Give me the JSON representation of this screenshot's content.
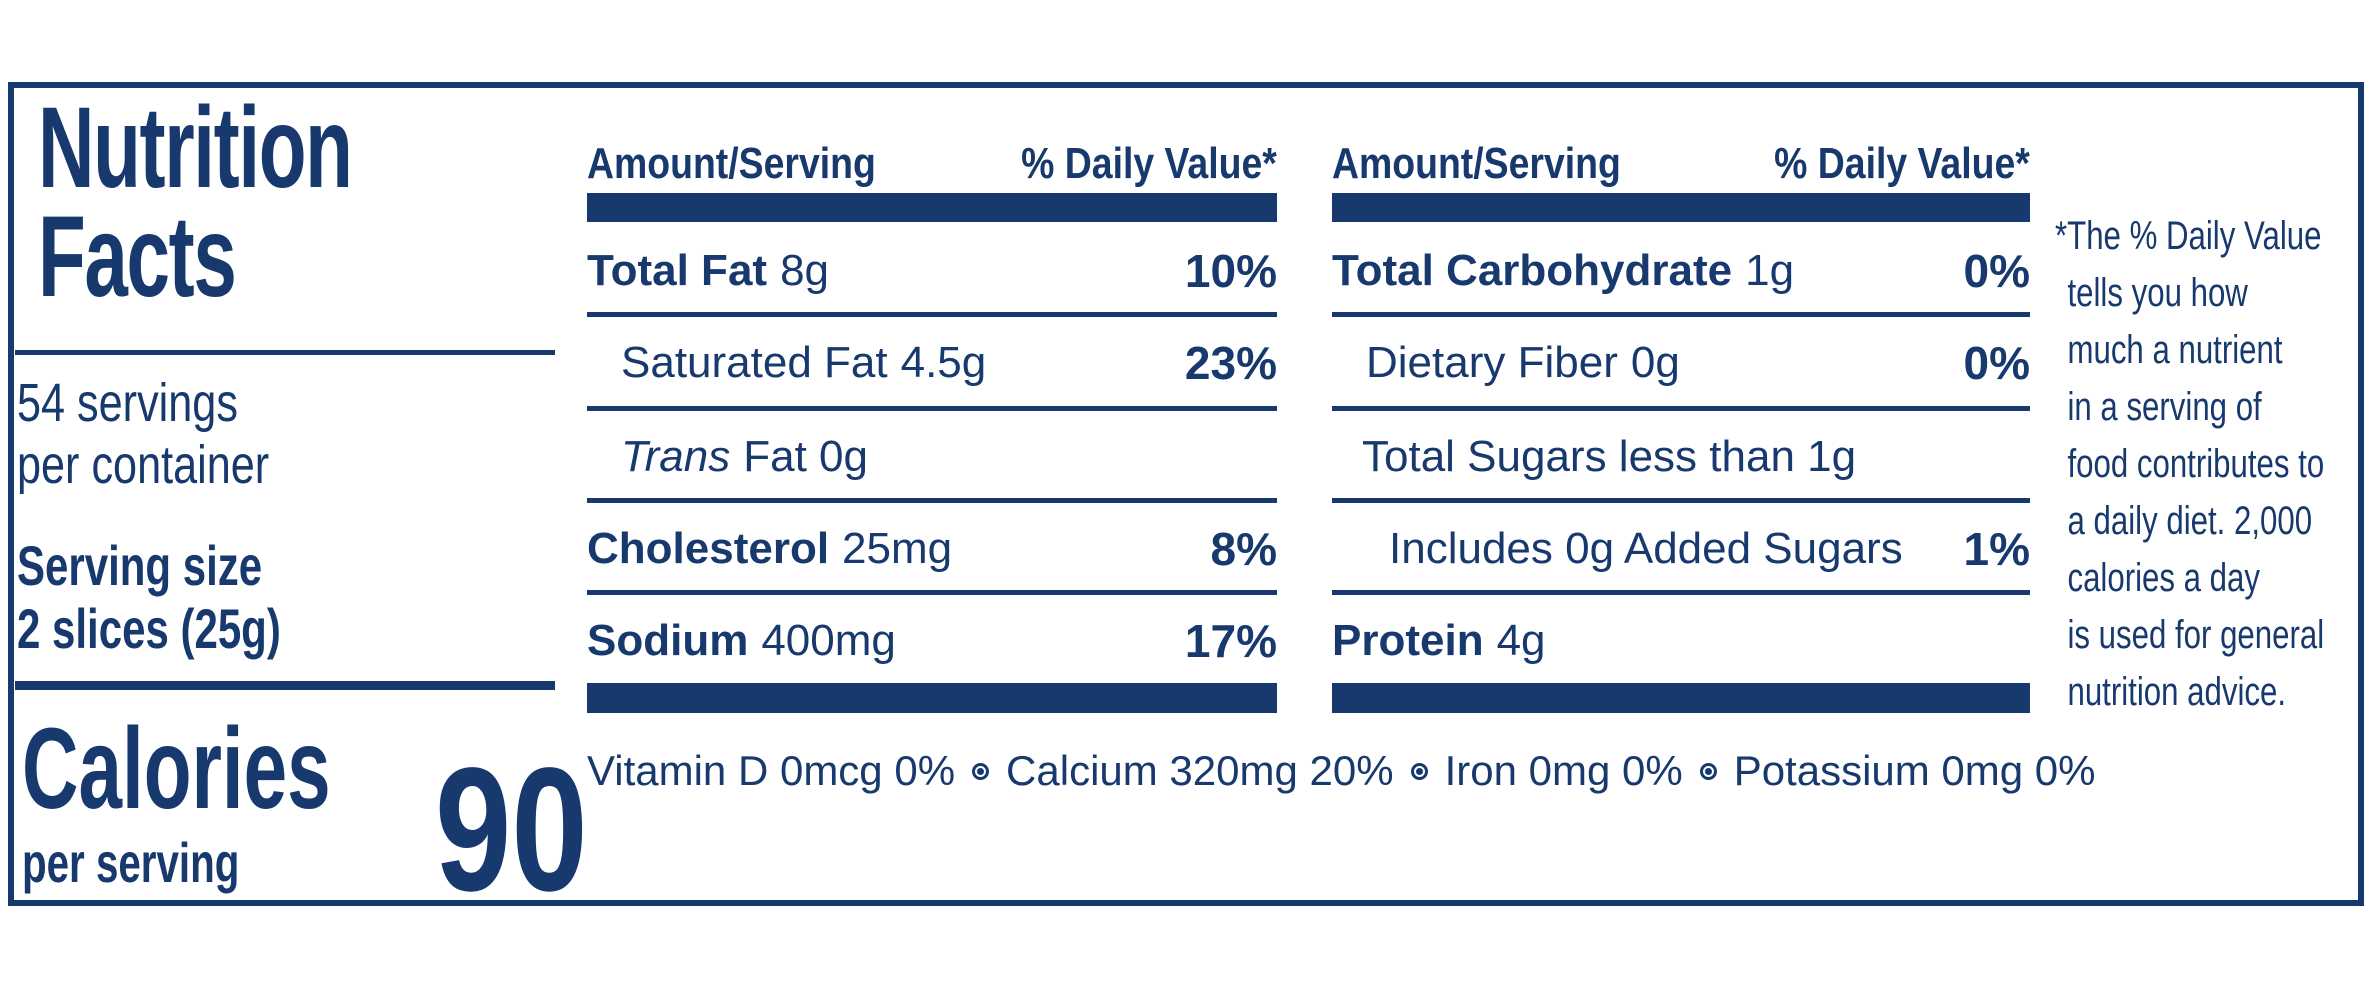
{
  "colors": {
    "navy": "#17396e",
    "background": "#ffffff"
  },
  "label": {
    "title_line1": "Nutrition",
    "title_line2": "Facts",
    "servings_line1": "54 servings",
    "servings_line2": "per container",
    "serving_size_label": "Serving size",
    "serving_size_value": "2 slices (25g)",
    "calories_label": "Calories",
    "calories_sublabel": "per serving",
    "calories_value": "90"
  },
  "panel1": {
    "header": {
      "amount": "Amount/Serving",
      "daily_value": "% Daily Value*"
    },
    "rows": [
      {
        "name": "Total Fat",
        "amount": "8g",
        "dv": "10%"
      },
      {
        "name": "Saturated Fat",
        "amount": "4.5g",
        "dv": "23%"
      },
      {
        "name": "Trans",
        "amount": "Fat 0g",
        "dv": ""
      },
      {
        "name": "Cholesterol",
        "amount": "25mg",
        "dv": "8%"
      },
      {
        "name": "Sodium",
        "amount": "400mg",
        "dv": "17%"
      }
    ]
  },
  "panel2": {
    "header": {
      "amount": "Amount/Serving",
      "daily_value": "% Daily Value*"
    },
    "rows": [
      {
        "name": "Total Carbohydrate",
        "amount": "1g",
        "dv": "0%"
      },
      {
        "name": "Dietary Fiber",
        "amount": "0g",
        "dv": "0%"
      },
      {
        "name": "Total Sugars less than 1g",
        "amount": "",
        "dv": ""
      },
      {
        "name": "Includes 0g Added Sugars",
        "amount": "",
        "dv": "1%"
      },
      {
        "name": "Protein",
        "amount": "4g",
        "dv": ""
      }
    ]
  },
  "footnote": {
    "lines": [
      "*The % Daily Value",
      "tells you how",
      "much a nutrient",
      "in a serving of",
      "food contributes to",
      "a daily diet. 2,000",
      "calories a day",
      "is used for general",
      "nutrition advice."
    ]
  },
  "vitamins": {
    "separator_icon": "circle-dot",
    "items": [
      "Vitamin D 0mcg 0%",
      "Calcium 320mg 20%",
      "Iron 0mg 0%",
      "Potassium 0mg 0%"
    ]
  }
}
